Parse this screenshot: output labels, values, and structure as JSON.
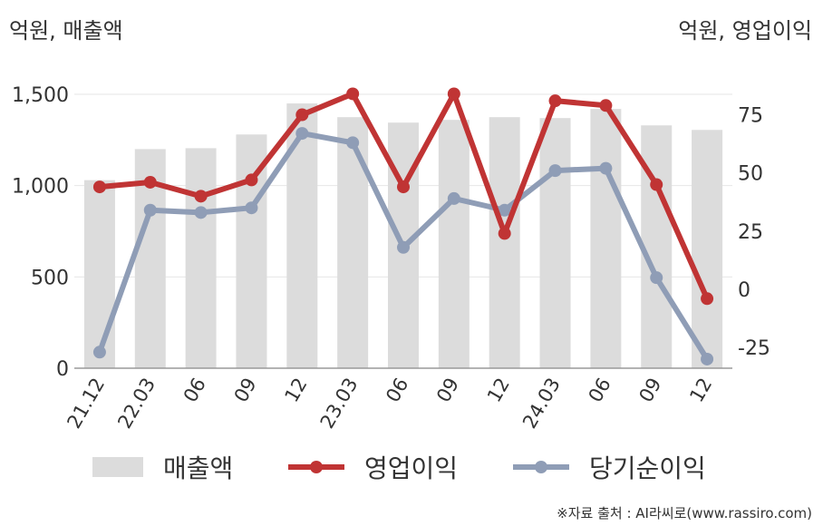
{
  "units": {
    "left": "억원, 매출액",
    "right": "억원, 영업이익"
  },
  "source": "※자료 출처 : AI라씨로(www.rassiro.com)",
  "colors": {
    "revenue": "#dcdcdc",
    "operating": "#c03434",
    "net": "#8f9db6",
    "grid": "#e6e6e6",
    "axis": "#9a9a9a"
  },
  "chart_data": {
    "type": "bar",
    "categories": [
      "21.12",
      "22.03",
      "06",
      "09",
      "12",
      "23.03",
      "06",
      "09",
      "12",
      "24.03",
      "06",
      "09",
      "12"
    ],
    "left_axis": {
      "ticks": [
        "0",
        "500",
        "1,000",
        "1,500"
      ],
      "tick_values": [
        0,
        500,
        1000,
        1500
      ],
      "ylim": [
        0,
        1500
      ]
    },
    "right_axis": {
      "ticks": [
        "-25",
        "0",
        "25",
        "50",
        "75"
      ],
      "tick_values": [
        -25,
        0,
        25,
        50,
        75
      ],
      "ylim": [
        -35,
        84
      ]
    },
    "series": [
      {
        "name": "매출액",
        "type": "bar",
        "axis": "left",
        "values": [
          1030,
          1200,
          1205,
          1280,
          1450,
          1375,
          1345,
          1360,
          1375,
          1370,
          1420,
          1330,
          1305
        ]
      },
      {
        "name": "영업이익",
        "type": "line",
        "axis": "right",
        "values": [
          44,
          46,
          40,
          47,
          75,
          84,
          44,
          84,
          24,
          81,
          79,
          45,
          -4
        ]
      },
      {
        "name": "당기순이익",
        "type": "line",
        "axis": "right",
        "values": [
          -27,
          34,
          33,
          35,
          67,
          63,
          18,
          39,
          34,
          51,
          52,
          5,
          -30
        ]
      }
    ],
    "grid": true,
    "legend_position": "bottom"
  }
}
